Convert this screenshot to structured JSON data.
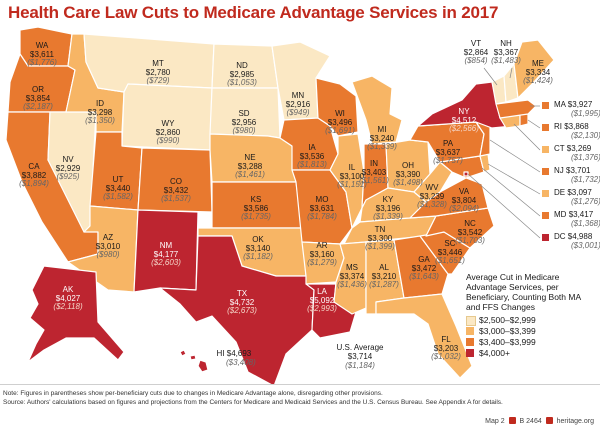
{
  "title": "Health Care Law Cuts to Medicare Advantage Services in 2017",
  "colors": {
    "c1": "#fbe8c4",
    "c2": "#f7b565",
    "c3": "#e8792f",
    "c4": "#bd2530",
    "border": "#ffffff"
  },
  "states": {
    "WA": {
      "ab": "WA",
      "v": "$3,611",
      "ma": "($1,776)"
    },
    "OR": {
      "ab": "OR",
      "v": "$3,854",
      "ma": "($2,187)"
    },
    "CA": {
      "ab": "CA",
      "v": "$3,882",
      "ma": "($1,894)"
    },
    "NV": {
      "ab": "NV",
      "v": "$2,929",
      "ma": "($925)"
    },
    "ID": {
      "ab": "ID",
      "v": "$3,298",
      "ma": "($1,350)"
    },
    "MT": {
      "ab": "MT",
      "v": "$2,780",
      "ma": "($729)"
    },
    "WY": {
      "ab": "WY",
      "v": "$2,860",
      "ma": "($990)"
    },
    "UT": {
      "ab": "UT",
      "v": "$3,440",
      "ma": "($1,582)"
    },
    "AZ": {
      "ab": "AZ",
      "v": "$3,010",
      "ma": "($980)"
    },
    "CO": {
      "ab": "CO",
      "v": "$3,432",
      "ma": "($1,537)"
    },
    "NM": {
      "ab": "NM",
      "v": "$4,177",
      "ma": "($2,603)"
    },
    "ND": {
      "ab": "ND",
      "v": "$2,985",
      "ma": "($1,053)"
    },
    "SD": {
      "ab": "SD",
      "v": "$2,956",
      "ma": "($980)"
    },
    "NE": {
      "ab": "NE",
      "v": "$3,288",
      "ma": "($1,461)"
    },
    "KS": {
      "ab": "KS",
      "v": "$3,586",
      "ma": "($1,735)"
    },
    "OK": {
      "ab": "OK",
      "v": "$3,140",
      "ma": "($1,182)"
    },
    "TX": {
      "ab": "TX",
      "v": "$4,732",
      "ma": "($2,673)"
    },
    "MN": {
      "ab": "MN",
      "v": "$2,916",
      "ma": "($949)"
    },
    "IA": {
      "ab": "IA",
      "v": "$3,536",
      "ma": "($1,813)"
    },
    "MO": {
      "ab": "MO",
      "v": "$3,631",
      "ma": "($1,784)"
    },
    "AR": {
      "ab": "AR",
      "v": "$3,160",
      "ma": "($1,279)"
    },
    "LA": {
      "ab": "LA",
      "v": "$5,092",
      "ma": "($2,993)"
    },
    "WI": {
      "ab": "WI",
      "v": "$3,496",
      "ma": "($1,691)"
    },
    "IL": {
      "ab": "IL",
      "v": "$3,100",
      "ma": "($1,151)"
    },
    "MI": {
      "ab": "MI",
      "v": "$3,240",
      "ma": "($1,339)"
    },
    "IN": {
      "ab": "IN",
      "v": "$3,403",
      "ma": "($1,561)"
    },
    "OH": {
      "ab": "OH",
      "v": "$3,390",
      "ma": "($1,498)"
    },
    "KY": {
      "ab": "KY",
      "v": "$3,196",
      "ma": "($1,339)"
    },
    "TN": {
      "ab": "TN",
      "v": "$3,300",
      "ma": "($1,399)"
    },
    "MS": {
      "ab": "MS",
      "v": "$3,374",
      "ma": "($1,436)"
    },
    "AL": {
      "ab": "AL",
      "v": "$3,210",
      "ma": "($1,287)"
    },
    "GA": {
      "ab": "GA",
      "v": "$3,472",
      "ma": "($1,643)"
    },
    "FL": {
      "ab": "FL",
      "v": "$3,203",
      "ma": "($1,032)"
    },
    "SC": {
      "ab": "SC",
      "v": "$3,446",
      "ma": "($1,651)"
    },
    "NC": {
      "ab": "NC",
      "v": "$3,542",
      "ma": "($1,703)"
    },
    "VA": {
      "ab": "VA",
      "v": "$3,804",
      "ma": "($2,094)"
    },
    "WV": {
      "ab": "WV",
      "v": "$3,239",
      "ma": "($1,328)"
    },
    "PA": {
      "ab": "PA",
      "v": "$3,637",
      "ma": "($1,757)"
    },
    "NY": {
      "ab": "NY",
      "v": "$4,512",
      "ma": "($2,566)"
    },
    "VT": {
      "ab": "VT",
      "v": "$2,864",
      "ma": "($854)"
    },
    "NH": {
      "ab": "NH",
      "v": "$3,367",
      "ma": "($1,483)"
    },
    "ME": {
      "ab": "ME",
      "v": "$3,334",
      "ma": "($1,424)"
    },
    "AK": {
      "ab": "AK",
      "v": "$4,027",
      "ma": "($2,118)"
    },
    "HI": {
      "ab": "HI",
      "v": "$4,693",
      "ma": "($3,408)"
    }
  },
  "northeast": [
    {
      "ab": "MA",
      "v": "$3,927",
      "ma": "($1,995)",
      "color": "#e8792f"
    },
    {
      "ab": "RI",
      "v": "$3,868",
      "ma": "($2,130)",
      "color": "#e8792f"
    },
    {
      "ab": "CT",
      "v": "$3,269",
      "ma": "($1,376)",
      "color": "#f7b565"
    },
    {
      "ab": "NJ",
      "v": "$3,701",
      "ma": "($1,732)",
      "color": "#e8792f"
    },
    {
      "ab": "DE",
      "v": "$3,097",
      "ma": "($1,276)",
      "color": "#f7b565"
    },
    {
      "ab": "MD",
      "v": "$3,417",
      "ma": "($1,368)",
      "color": "#e8792f"
    },
    {
      "ab": "DC",
      "v": "$4,988",
      "ma": "($3,001)",
      "color": "#bd2530"
    }
  ],
  "legend": {
    "title": "Average Cut in Medicare Advantage Services, per Beneficiary, Counting Both MA and FFS Changes",
    "items": [
      {
        "label": "$2,500–$2,999",
        "color": "#fbe8c4"
      },
      {
        "label": "$3,000–$3,399",
        "color": "#f7b565"
      },
      {
        "label": "$3,400–$3,999",
        "color": "#e8792f"
      },
      {
        "label": "$4,000+",
        "color": "#bd2530"
      }
    ]
  },
  "us_average": {
    "label": "U.S. Average",
    "v": "$3,714",
    "ma": "($1,184)"
  },
  "note": "Note: Figures in parentheses show per-beneficiary cuts due to changes in Medicare Advantage alone, disregarding other provisions.",
  "source": "Source: Authors' calculations based on figures and projections from the Centers for Medicare and Medicaid Services and the U.S. Census Bureau. See Appendix A for details.",
  "footer": {
    "map": "Map 2",
    "sep": "B 2464",
    "site": "heritage.org"
  }
}
